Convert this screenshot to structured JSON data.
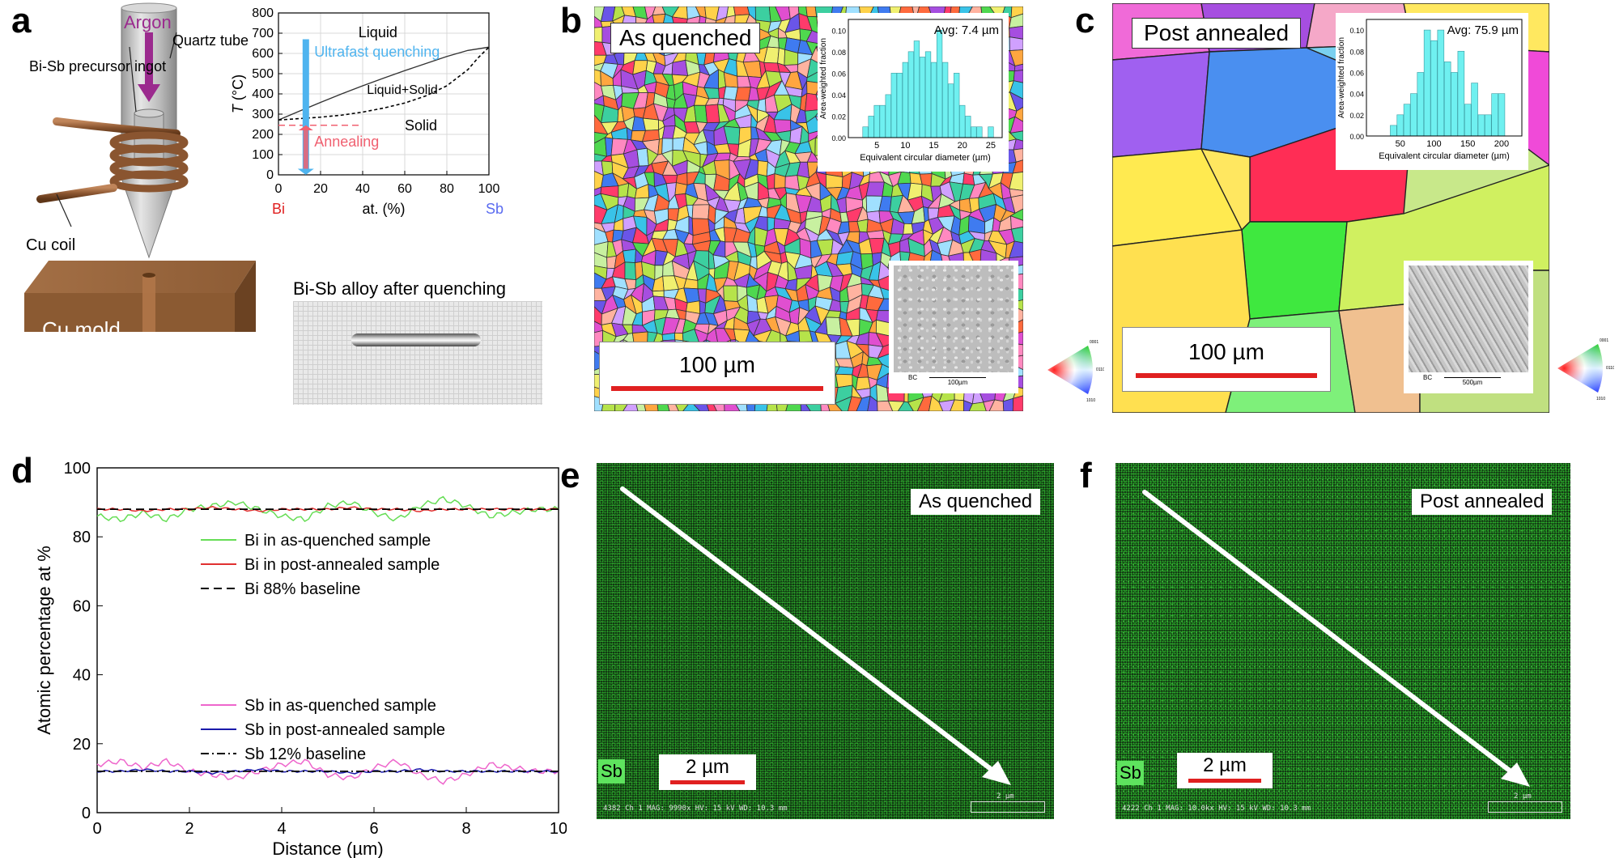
{
  "panels": {
    "a": {
      "letter": "a",
      "labels": {
        "argon": "Argon",
        "quartz_tube": "Quartz tube",
        "precursor": "Bi-Sb precursor ingot",
        "cu_coil": "Cu coil",
        "cu_mold": "Cu mold",
        "photo_title": "Bi-Sb alloy after quenching"
      },
      "phase_diagram": {
        "ylabel_italic": "T",
        "ylabel_rest": " (°C)",
        "xlabel": "at. (%)",
        "x_left": "Bi",
        "x_right": "Sb",
        "x_ticks": [
          "0",
          "20",
          "40",
          "60",
          "80",
          "100"
        ],
        "y_ticks": [
          "0",
          "100",
          "200",
          "300",
          "400",
          "500",
          "600",
          "700",
          "800"
        ],
        "region_liquid": "Liquid",
        "region_two_phase": "Liquid+Solid",
        "region_solid": "Solid",
        "arrow_quench": "Ultrafast quenching",
        "arrow_anneal": "Annealing"
      }
    },
    "b": {
      "letter": "b",
      "title": "As quenched",
      "scale": "100 µm",
      "inset": {
        "avg": "Avg: 7.4 µm",
        "xlabel": "Equivalent circular diameter (µm)",
        "ylabel": "Area-weighted fraction",
        "x_ticks": [
          "5",
          "10",
          "15",
          "20",
          "25"
        ],
        "y_ticks": [
          "0.00",
          "0.02",
          "0.04",
          "0.06",
          "0.08",
          "0.10"
        ]
      },
      "sem_scale": "100µm",
      "sem_tag": "BC"
    },
    "c": {
      "letter": "c",
      "title": "Post annealed",
      "scale": "100 µm",
      "inset": {
        "avg": "Avg: 75.9 µm",
        "xlabel": "Equivalent circular diameter (µm)",
        "ylabel": "Area-weighted fraction",
        "x_ticks": [
          "50",
          "100",
          "150",
          "200"
        ],
        "y_ticks": [
          "0.00",
          "0.02",
          "0.04",
          "0.06",
          "0.08",
          "0.10"
        ]
      },
      "sem_scale": "500µm",
      "sem_tag": "BC"
    },
    "d": {
      "letter": "d",
      "ylabel": "Atomic percentage at %",
      "xlabel": "Distance (µm)",
      "x_ticks": [
        "0",
        "2",
        "4",
        "6",
        "8",
        "10"
      ],
      "y_ticks": [
        "0",
        "20",
        "40",
        "60",
        "80",
        "100"
      ],
      "legend_top": [
        "Bi in as-quenched sample",
        "Bi in post-annealed sample",
        "Bi 88% baseline"
      ],
      "legend_bottom": [
        "Sb in as-quenched sample",
        "Sb in post-annealed sample",
        "Sb 12% baseline"
      ]
    },
    "e": {
      "letter": "e",
      "title": "As quenched",
      "element": "Sb",
      "scale": "2 µm",
      "footer": "4382   Ch 1   MAG: 9990x   HV: 15 kV   WD: 10.3 mm",
      "footer_scale": "2 µm"
    },
    "f": {
      "letter": "f",
      "title": "Post annealed",
      "element": "Sb",
      "scale": "2 µm",
      "footer": "4222   Ch 1   MAG: 10.0kx   HV: 15 kV   WD: 10.3 mm",
      "footer_scale": "2 µm"
    }
  },
  "chart_data": [
    {
      "type": "line",
      "panel": "a",
      "xlim": [
        0,
        100
      ],
      "ylim": [
        0,
        800
      ],
      "series": [
        {
          "name": "Liquid",
          "x": [
            0,
            10,
            20,
            30,
            40,
            50,
            60,
            70,
            80,
            90,
            100
          ],
          "y": [
            271,
            315,
            358,
            400,
            440,
            478,
            515,
            550,
            585,
            615,
            631
          ]
        },
        {
          "name": "Solid",
          "x": [
            0,
            10,
            20,
            30,
            40,
            50,
            60,
            70,
            80,
            90,
            95,
            100
          ],
          "y": [
            271,
            278,
            285,
            295,
            310,
            330,
            355,
            390,
            440,
            520,
            580,
            631
          ]
        }
      ],
      "annotations": {
        "quench_x": 13,
        "quench_from": 670,
        "quench_to": 0,
        "anneal_x": 13,
        "anneal_from": 30,
        "anneal_to": 245,
        "anneal_level": 245
      }
    },
    {
      "type": "bar",
      "panel": "b-inset",
      "x": [
        3,
        4,
        5,
        6,
        7,
        8,
        9,
        10,
        11,
        12,
        13,
        14,
        15,
        16,
        17,
        18,
        19,
        20,
        21,
        22,
        23,
        25
      ],
      "values": [
        0.01,
        0.02,
        0.03,
        0.03,
        0.04,
        0.06,
        0.06,
        0.07,
        0.08,
        0.09,
        0.075,
        0.08,
        0.07,
        0.1,
        0.07,
        0.05,
        0.06,
        0.03,
        0.02,
        0.01,
        0.01,
        0.01
      ],
      "xlim": [
        0,
        27
      ],
      "ylim": [
        0,
        0.11
      ]
    },
    {
      "type": "bar",
      "panel": "c-inset",
      "x": [
        40,
        50,
        60,
        70,
        80,
        90,
        100,
        110,
        120,
        130,
        140,
        150,
        160,
        170,
        180,
        190,
        200
      ],
      "values": [
        0.01,
        0.02,
        0.03,
        0.04,
        0.06,
        0.1,
        0.09,
        0.1,
        0.07,
        0.06,
        0.08,
        0.03,
        0.05,
        0.02,
        0.02,
        0.04,
        0.04
      ],
      "xlim": [
        0,
        230
      ],
      "ylim": [
        0,
        0.11
      ]
    },
    {
      "type": "line",
      "panel": "d",
      "xlim": [
        0,
        10
      ],
      "ylim": [
        0,
        100
      ],
      "x": [
        0,
        0.5,
        1,
        1.5,
        2,
        2.5,
        3,
        3.5,
        4,
        4.5,
        5,
        5.5,
        6,
        6.5,
        7,
        7.5,
        8,
        8.5,
        9,
        9.5,
        10
      ],
      "series": [
        {
          "name": "Bi in as-quenched sample",
          "color": "#66dd55",
          "values": [
            86,
            85,
            87,
            85,
            88,
            89,
            90,
            88,
            86,
            85,
            89,
            90,
            87,
            85,
            89,
            91,
            89,
            86,
            87,
            88,
            88
          ]
        },
        {
          "name": "Bi in post-annealed sample",
          "color": "#e03030",
          "values": [
            88,
            88,
            87.5,
            88,
            88,
            88.5,
            88,
            87.5,
            88,
            88,
            88,
            88.5,
            88,
            88,
            87.5,
            88,
            88,
            88,
            88,
            88,
            88
          ]
        },
        {
          "name": "Bi 88% baseline",
          "color": "#000000",
          "dash": "dash",
          "values": [
            88,
            88,
            88,
            88,
            88,
            88,
            88,
            88,
            88,
            88,
            88,
            88,
            88,
            88,
            88,
            88,
            88,
            88,
            88,
            88,
            88
          ]
        },
        {
          "name": "Sb in as-quenched sample",
          "color": "#ee66cc",
          "values": [
            14,
            15,
            13,
            15,
            12,
            11,
            10,
            12,
            14,
            15,
            11,
            10,
            13,
            15,
            11,
            9,
            11,
            14,
            13,
            12,
            12
          ]
        },
        {
          "name": "Sb in post-annealed sample",
          "color": "#1a1aaa",
          "values": [
            12,
            12,
            12.5,
            12,
            12,
            11.5,
            12,
            12.5,
            12,
            12,
            12,
            11.5,
            12,
            12,
            12.5,
            12,
            12,
            12,
            12,
            12,
            12
          ]
        },
        {
          "name": "Sb 12% baseline",
          "color": "#000000",
          "dash": "dashdot",
          "values": [
            12,
            12,
            12,
            12,
            12,
            12,
            12,
            12,
            12,
            12,
            12,
            12,
            12,
            12,
            12,
            12,
            12,
            12,
            12,
            12,
            12
          ]
        }
      ]
    }
  ]
}
